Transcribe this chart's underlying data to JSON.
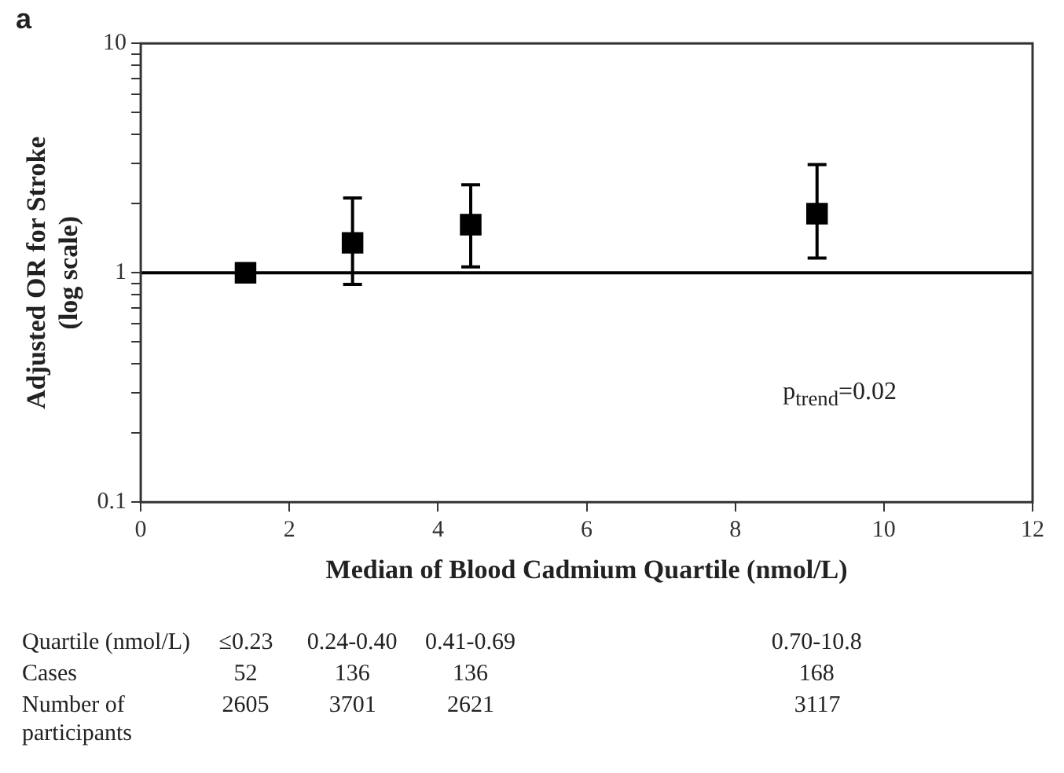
{
  "chart_data": {
    "type": "scatter",
    "title": "a",
    "xlabel": "Median of Blood Cadmium Quartile (nmol/L)",
    "ylabel": "Adjusted OR for Stroke\n(log scale)",
    "x": [
      1.41,
      2.85,
      4.44,
      9.1
    ],
    "series": [
      {
        "color": "#000000",
        "values": [
          1.0,
          1.35,
          1.62,
          1.81
        ],
        "errors": [
          null,
          [
            0.89,
            2.12
          ],
          [
            1.06,
            2.42
          ],
          [
            1.16,
            2.96
          ]
        ]
      }
    ],
    "xlim": [
      0,
      12
    ],
    "xticks": [
      0,
      2,
      4,
      6,
      8,
      10,
      12
    ],
    "ylim": [
      0.1,
      10
    ],
    "yticks": [
      0.1,
      {
        "value": 0.2,
        "label": null
      },
      {
        "value": 0.3,
        "label": null
      },
      {
        "value": 0.4,
        "label": null
      },
      {
        "value": 0.5,
        "label": null
      },
      {
        "value": 0.6,
        "label": null
      },
      {
        "value": 0.7,
        "label": null
      },
      {
        "value": 0.8,
        "label": null
      },
      {
        "value": 0.9,
        "label": null
      },
      1,
      {
        "value": 2,
        "label": null
      },
      {
        "value": 3,
        "label": null
      },
      {
        "value": 4,
        "label": null
      },
      {
        "value": 5,
        "label": null
      },
      {
        "value": 6,
        "label": null
      },
      {
        "value": 7,
        "label": null
      },
      {
        "value": 8,
        "label": null
      },
      {
        "value": 9,
        "label": null
      },
      10
    ],
    "log": "y",
    "grid": false,
    "legend": false,
    "marker": "square",
    "ref_lines": [
      {
        "axis": "y",
        "value": 1,
        "color": "#000000"
      }
    ],
    "annotations": [
      "p$_{trend}$=0.02",
      "Quartile (nmol/L)",
      "≤0.23",
      "0.24-0.40",
      "0.41-0.69",
      "0.70-10.8",
      "Cases",
      "52",
      "136",
      "136",
      "168",
      "Number of participants",
      "2605",
      "3701",
      "2621",
      "3117"
    ]
  }
}
